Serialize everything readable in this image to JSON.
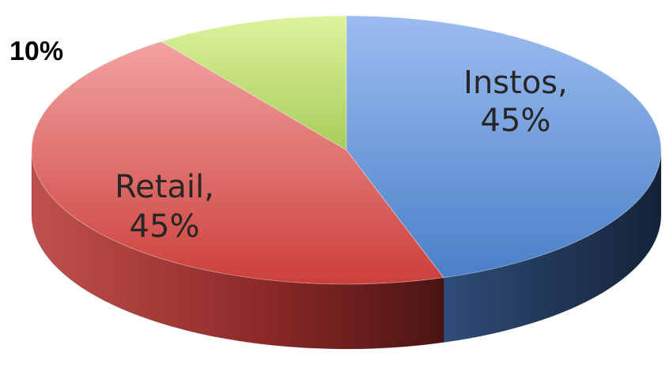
{
  "chart_data": {
    "type": "pie",
    "style": "3d",
    "categories": [
      "Instos",
      "Retail",
      ""
    ],
    "values": [
      45,
      45,
      10
    ],
    "value_format": "percent",
    "data_labels": [
      {
        "lines": [
          "Instos,",
          "45%"
        ]
      },
      {
        "lines": [
          "Retail,",
          "45%"
        ]
      },
      {
        "lines": [
          "10%"
        ]
      }
    ],
    "colors": [
      "#4F81BD",
      "#C0504D",
      "#9BBB59"
    ],
    "title": "",
    "legend": "none"
  }
}
